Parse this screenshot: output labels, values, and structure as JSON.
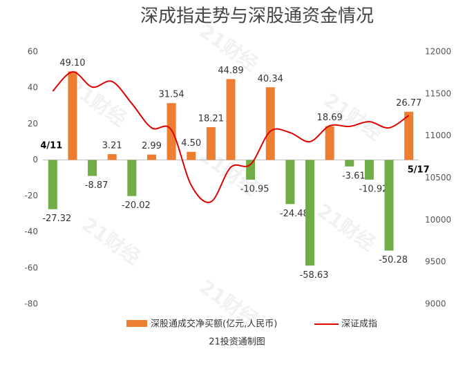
{
  "chart_data": {
    "type": "bar_line",
    "title": "深成指走势与深股通资金情况",
    "source": "21投资通制图",
    "watermark": "21财经",
    "categories": [
      "4/11",
      null,
      null,
      null,
      null,
      null,
      null,
      null,
      null,
      null,
      null,
      null,
      null,
      null,
      null,
      null,
      null,
      null,
      "5/17"
    ],
    "series": [
      {
        "name": "深股通成交净买额(亿元,人民币)",
        "type": "bar",
        "color": "#ed7d31",
        "negative_color": "#70ad47",
        "values": [
          -27.32,
          49.1,
          -8.87,
          3.21,
          -20.02,
          2.99,
          31.54,
          4.5,
          18.21,
          44.89,
          -10.95,
          40.34,
          -24.48,
          -58.63,
          18.69,
          -3.61,
          -10.92,
          -50.28,
          26.77
        ],
        "value_labels": [
          "-27.32",
          "49.10",
          "-8.87",
          "3.21",
          "-20.02",
          "2.99",
          "31.54",
          "4.50",
          "18.21",
          "44.89",
          "-10.95",
          "40.34",
          "-24.48",
          "-58.63",
          "18.69",
          "-3.61",
          "-10.92",
          "-50.28",
          "26.77"
        ]
      },
      {
        "name": "深证成指",
        "type": "line",
        "axis": "y2",
        "color": "#e00000",
        "values": [
          11532,
          11762,
          11581,
          11647,
          11384,
          11096,
          11071,
          10414,
          10217,
          10628,
          10661,
          11055,
          11039,
          10932,
          11121,
          11113,
          11170,
          11096,
          11244
        ]
      }
    ],
    "ylim": [
      -80,
      60
    ],
    "yticks": [
      -80,
      -60,
      -40,
      -20,
      0,
      20,
      40,
      60
    ],
    "y2lim": [
      9000,
      12000
    ],
    "y2ticks": [
      9000,
      9500,
      10000,
      10500,
      11000,
      11500,
      12000
    ],
    "legend": "bottom"
  }
}
